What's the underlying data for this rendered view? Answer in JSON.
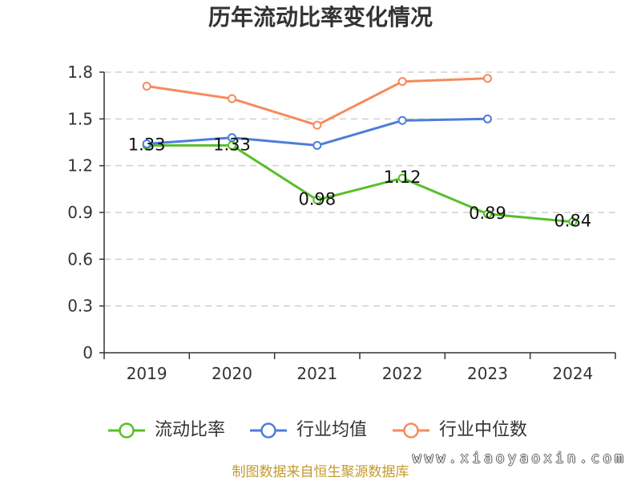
{
  "chart_data": {
    "type": "line",
    "title": "历年流动比率变化情况",
    "categories": [
      "2019",
      "2020",
      "2021",
      "2022",
      "2023",
      "2024"
    ],
    "yticks": [
      "0",
      "0.3",
      "0.6",
      "0.9",
      "1.2",
      "1.5",
      "1.8"
    ],
    "ylim": [
      0,
      1.8
    ],
    "grid": true,
    "legend_position": "bottom",
    "series": [
      {
        "name": "流动比率",
        "color": "#58bf29",
        "values": [
          1.33,
          1.33,
          0.98,
          1.12,
          0.89,
          0.84
        ],
        "labels": [
          "1.33",
          "1.33",
          "0.98",
          "1.12",
          "0.89",
          "0.84"
        ]
      },
      {
        "name": "行业均值",
        "color": "#4e7dd9",
        "values": [
          1.34,
          1.38,
          1.33,
          1.49,
          1.5,
          null
        ]
      },
      {
        "name": "行业中位数",
        "color": "#f58b5c",
        "values": [
          1.71,
          1.63,
          1.46,
          1.74,
          1.76,
          null
        ]
      }
    ]
  },
  "footer": {
    "source": "制图数据来自恒生聚源数据库",
    "color": "#c39a2f"
  },
  "watermark": "www.xiaoyaoxin.com"
}
